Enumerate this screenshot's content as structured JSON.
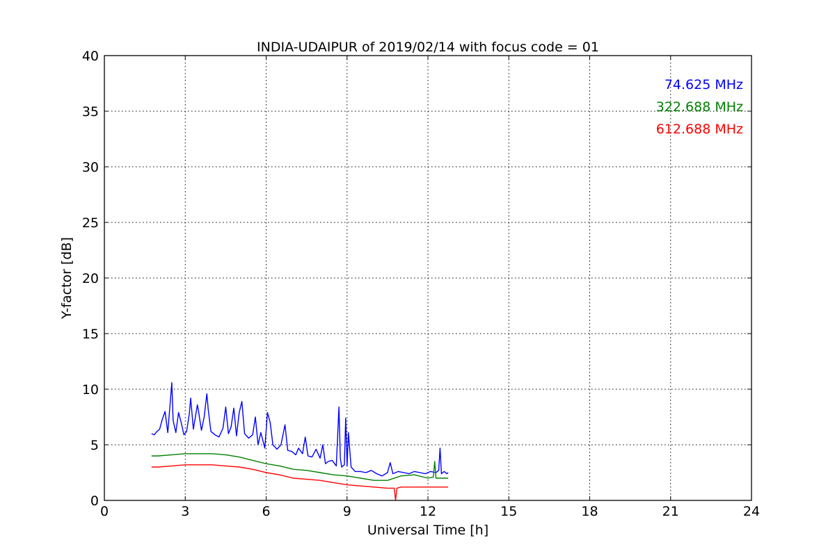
{
  "chart_data": {
    "type": "line",
    "title": "INDIA-UDAIPUR of 2019/02/14 with focus code = 01",
    "xlabel": "Universal Time [h]",
    "ylabel": "Y-factor [dB]",
    "xlim": [
      0,
      24
    ],
    "ylim": [
      0,
      40
    ],
    "xticks": [
      0,
      3,
      6,
      9,
      12,
      15,
      18,
      21,
      24
    ],
    "yticks": [
      0,
      5,
      10,
      15,
      20,
      25,
      30,
      35,
      40
    ],
    "xtick_labels": [
      "0",
      "3",
      "6",
      "9",
      "12",
      "15",
      "18",
      "21",
      "24"
    ],
    "ytick_labels": [
      "0",
      "5",
      "10",
      "15",
      "20",
      "25",
      "30",
      "35",
      "40"
    ],
    "grid": true,
    "legend_position": "top-right",
    "series": [
      {
        "name": "74.625 MHz",
        "color": "#0000ff",
        "x": [
          1.75,
          1.85,
          1.95,
          2.05,
          2.15,
          2.25,
          2.35,
          2.45,
          2.5,
          2.55,
          2.65,
          2.75,
          2.85,
          2.95,
          3.05,
          3.15,
          3.2,
          3.3,
          3.45,
          3.5,
          3.6,
          3.7,
          3.8,
          3.85,
          3.95,
          4.1,
          4.25,
          4.4,
          4.5,
          4.6,
          4.7,
          4.8,
          4.9,
          5.0,
          5.1,
          5.2,
          5.35,
          5.5,
          5.6,
          5.7,
          5.8,
          5.95,
          6.05,
          6.15,
          6.25,
          6.4,
          6.55,
          6.7,
          6.8,
          6.95,
          7.1,
          7.2,
          7.35,
          7.45,
          7.55,
          7.7,
          7.85,
          8.0,
          8.1,
          8.2,
          8.3,
          8.45,
          8.6,
          8.7,
          8.75,
          8.8,
          8.9,
          8.95,
          9.0,
          9.05,
          9.15,
          9.3,
          9.5,
          9.7,
          9.9,
          10.1,
          10.3,
          10.5,
          10.6,
          10.7,
          10.9,
          11.1,
          11.3,
          11.5,
          11.7,
          11.9,
          12.1,
          12.3,
          12.4,
          12.45,
          12.5,
          12.6,
          12.7,
          12.75
        ],
        "y": [
          6.0,
          5.9,
          6.2,
          6.4,
          7.3,
          8.0,
          6.1,
          9.0,
          10.6,
          7.2,
          6.1,
          7.9,
          7.0,
          5.9,
          6.2,
          7.8,
          9.2,
          6.4,
          8.6,
          7.9,
          6.3,
          7.5,
          9.6,
          8.2,
          6.2,
          5.9,
          5.7,
          6.5,
          8.4,
          6.0,
          6.6,
          8.3,
          5.8,
          7.9,
          8.9,
          6.0,
          5.6,
          5.9,
          7.5,
          5.0,
          6.1,
          4.7,
          7.9,
          7.0,
          5.0,
          4.6,
          5.0,
          6.8,
          4.5,
          4.4,
          4.1,
          4.7,
          4.2,
          5.7,
          4.0,
          3.9,
          4.6,
          3.8,
          5.0,
          3.3,
          3.5,
          3.6,
          3.1,
          8.4,
          3.8,
          3.0,
          3.2,
          7.4,
          3.1,
          6.1,
          3.0,
          2.6,
          2.6,
          2.5,
          2.7,
          2.4,
          2.2,
          2.5,
          3.4,
          2.4,
          2.6,
          2.5,
          2.4,
          2.6,
          2.5,
          2.4,
          2.6,
          2.5,
          2.7,
          4.7,
          2.4,
          2.6,
          2.4,
          2.5
        ]
      },
      {
        "name": "322.688 MHz",
        "color": "#008000",
        "x": [
          1.75,
          2.0,
          2.5,
          3.0,
          3.5,
          4.0,
          4.5,
          5.0,
          5.5,
          6.0,
          6.5,
          7.0,
          7.5,
          8.0,
          8.5,
          9.0,
          9.5,
          10.0,
          10.5,
          11.0,
          11.5,
          12.0,
          12.2,
          12.25,
          12.3,
          12.5,
          12.75
        ],
        "y": [
          4.0,
          4.0,
          4.1,
          4.2,
          4.2,
          4.2,
          4.1,
          3.9,
          3.6,
          3.3,
          3.1,
          2.8,
          2.7,
          2.5,
          2.3,
          2.2,
          2.0,
          1.8,
          1.8,
          2.2,
          2.3,
          2.0,
          2.1,
          3.5,
          2.0,
          2.0,
          2.0
        ]
      },
      {
        "name": "612.688 MHz",
        "color": "#ff0000",
        "x": [
          1.75,
          2.0,
          2.5,
          3.0,
          3.5,
          4.0,
          4.5,
          5.0,
          5.5,
          6.0,
          6.5,
          7.0,
          7.5,
          8.0,
          8.5,
          9.0,
          9.5,
          10.0,
          10.5,
          10.75,
          10.8,
          10.85,
          11.0,
          11.5,
          12.0,
          12.5,
          12.75
        ],
        "y": [
          3.0,
          3.0,
          3.1,
          3.2,
          3.2,
          3.2,
          3.1,
          3.0,
          2.8,
          2.5,
          2.3,
          2.0,
          1.9,
          1.8,
          1.6,
          1.4,
          1.3,
          1.2,
          1.1,
          1.1,
          0.0,
          1.1,
          1.2,
          1.2,
          1.2,
          1.2,
          1.2
        ]
      }
    ]
  }
}
